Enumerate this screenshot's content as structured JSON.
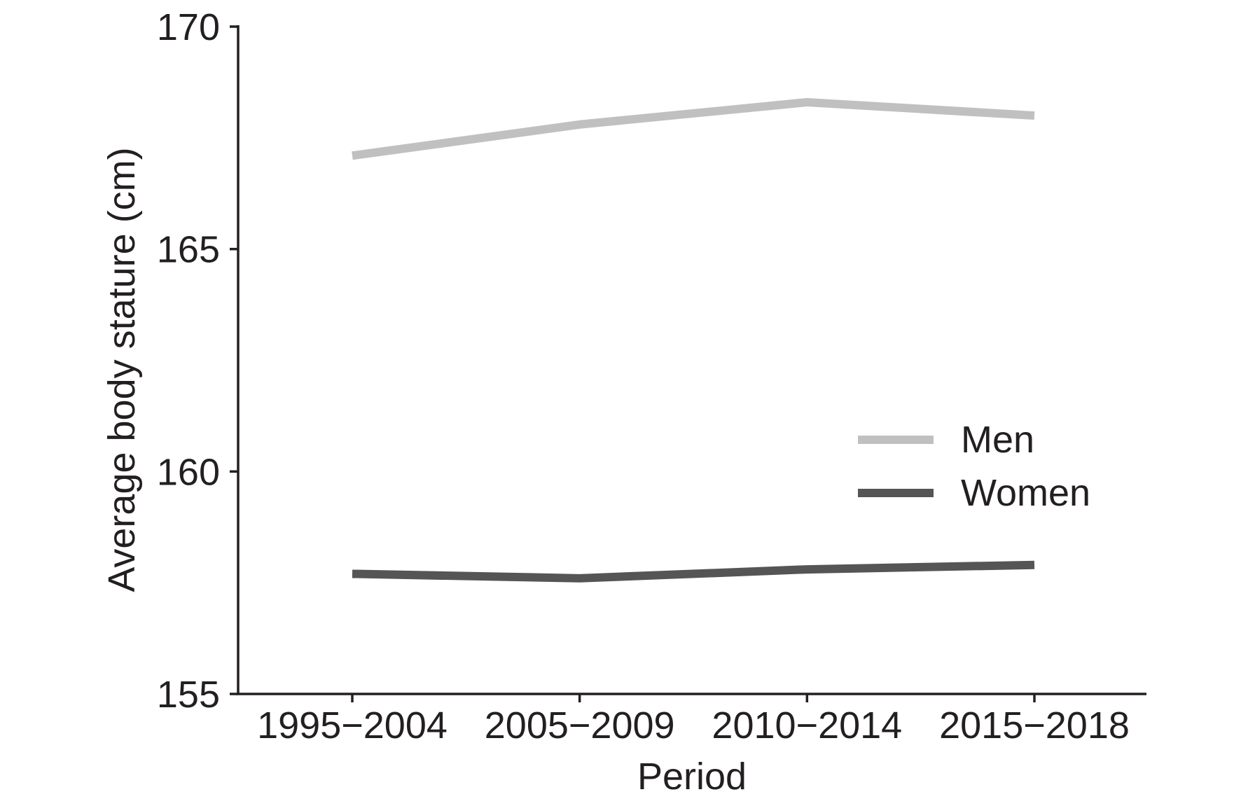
{
  "chart_data": {
    "type": "line",
    "title": "",
    "xlabel": "Period",
    "ylabel": "Average body stature (cm)",
    "categories": [
      "1995−2004",
      "2005−2009",
      "2010−2014",
      "2015−2018"
    ],
    "ylim": [
      155,
      170
    ],
    "yticks": [
      "155",
      "160",
      "165",
      "170"
    ],
    "grid": false,
    "legend_position": "center-right",
    "series": [
      {
        "name": "Men",
        "color": "#c0c0c0",
        "values": [
          167.1,
          167.8,
          168.3,
          168.0
        ]
      },
      {
        "name": "Women",
        "color": "#555555",
        "values": [
          157.7,
          157.6,
          157.8,
          157.9
        ]
      }
    ]
  }
}
